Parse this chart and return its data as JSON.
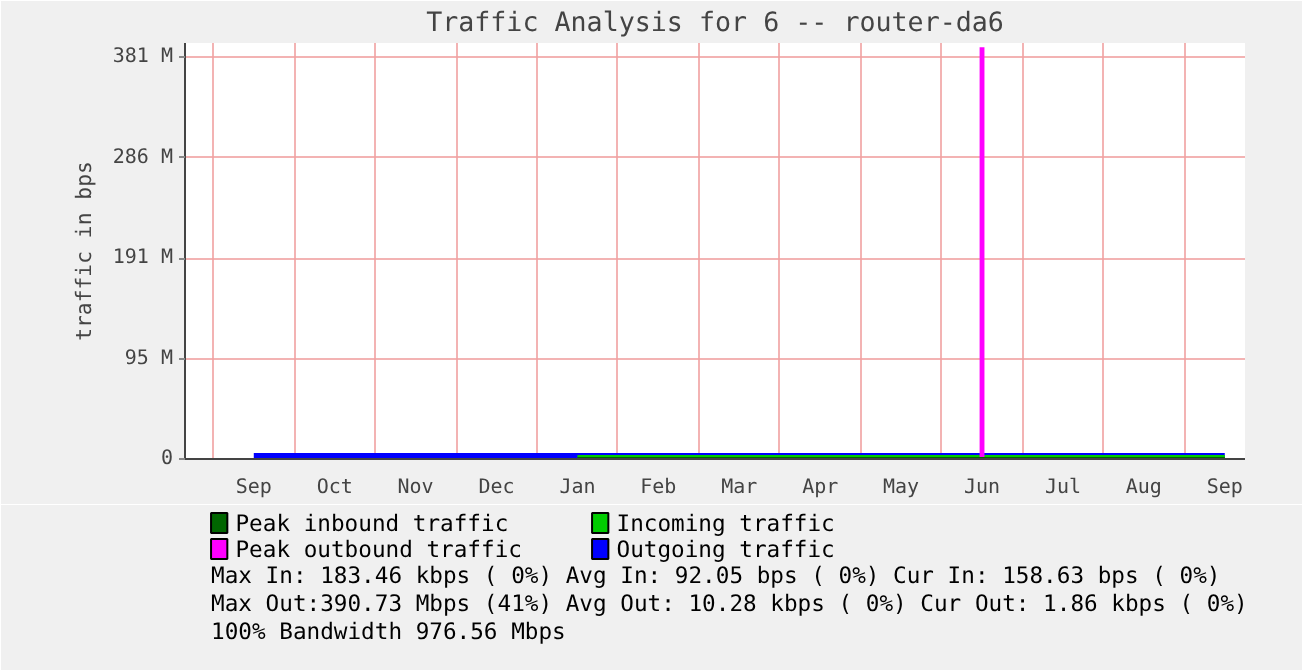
{
  "chart_data": {
    "type": "line",
    "title": "Traffic Analysis for 6 -- router-da6",
    "ylabel": "traffic in bps",
    "categories": [
      "Sep",
      "Oct",
      "Nov",
      "Dec",
      "Jan",
      "Feb",
      "Mar",
      "Apr",
      "May",
      "Jun",
      "Jul",
      "Aug",
      "Sep"
    ],
    "ylim": [
      0,
      395
    ],
    "yticks": [
      {
        "value": 0,
        "label": "0"
      },
      {
        "value": 95.37,
        "label": "95 M"
      },
      {
        "value": 190.73,
        "label": "191 M"
      },
      {
        "value": 286.1,
        "label": "286 M"
      },
      {
        "value": 381.47,
        "label": "381 M"
      }
    ],
    "grid": true,
    "legend": "bottom",
    "series": [
      {
        "name": "Peak inbound traffic",
        "color": "#006600",
        "values": [
          null,
          null,
          null,
          null,
          0,
          0,
          0,
          0,
          0,
          0,
          0,
          0,
          0
        ]
      },
      {
        "name": "Peak outbound traffic",
        "color": "#ff00ff",
        "type": "bar",
        "values": [
          0,
          0,
          0,
          0,
          0,
          0,
          0,
          0,
          0,
          391,
          0,
          0,
          0
        ]
      },
      {
        "name": "Incoming traffic",
        "color": "#00cc00",
        "values": [
          null,
          null,
          null,
          null,
          0,
          0,
          0,
          0,
          0,
          0,
          0,
          0,
          0
        ]
      },
      {
        "name": "Outgoing traffic",
        "color": "#0000ff",
        "values": [
          0,
          0,
          0,
          0,
          0,
          0,
          0,
          0,
          0,
          0,
          0,
          0,
          0
        ]
      }
    ],
    "annotations": [
      "Max In: 183.46 kbps ( 0%)  Avg In:  92.05  bps ( 0%)  Cur In: 158.63  bps ( 0%)",
      "Max Out:390.73 Mbps (41%)  Avg Out: 10.28 kbps ( 0%)  Cur Out:  1.86 kbps ( 0%)",
      "100% Bandwidth 976.56 Mbps"
    ]
  }
}
